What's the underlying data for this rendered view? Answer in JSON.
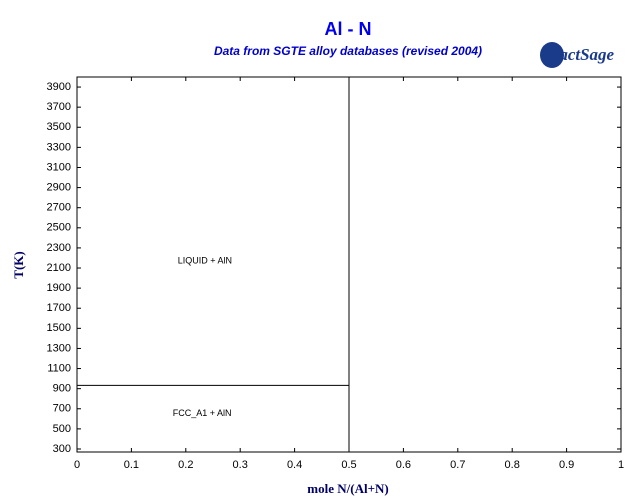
{
  "chart_data": {
    "type": "line",
    "title": "Al - N",
    "subtitle": "Data from SGTE alloy databases (revised 2004)",
    "logo": "FactSage",
    "xlabel": "mole N/(Al+N)",
    "ylabel": "T(K)",
    "xlim": [
      0,
      1
    ],
    "xticks": [
      0,
      0.1,
      0.2,
      0.3,
      0.4,
      0.5,
      0.6,
      0.7,
      0.8,
      0.9,
      1
    ],
    "ylim": [
      270,
      4000
    ],
    "yticks": [
      300,
      500,
      700,
      900,
      1100,
      1300,
      1500,
      1700,
      1900,
      2100,
      2300,
      2500,
      2700,
      2900,
      3100,
      3300,
      3500,
      3700,
      3900
    ],
    "series": [
      {
        "color": "#000000",
        "x": [
          0.5,
          0.5
        ],
        "values": [
          270,
          4000
        ]
      },
      {
        "color": "#000000",
        "x": [
          0,
          0.5
        ],
        "values": [
          933,
          933
        ]
      }
    ],
    "annotations": [
      {
        "text": "LIQUID + AlN",
        "x": 0.235,
        "y": 2170
      },
      {
        "text": "FCC_A1 + AlN",
        "x": 0.23,
        "y": 650
      }
    ]
  }
}
